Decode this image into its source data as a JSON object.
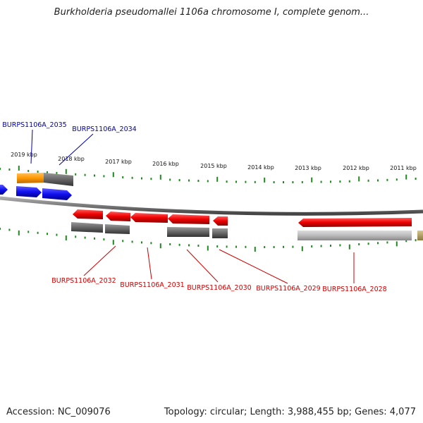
{
  "header": {
    "title": "Burkholderia pseudomallei 1106a chromosome I, complete genom..."
  },
  "footer": {
    "accession": "Accession: NC_009076",
    "summary": "Topology: circular; Length: 3,988,455 bp; Genes: 4,077"
  },
  "scale": {
    "ticks_outer": [
      "2019 kbp",
      "2018 kbp",
      "2017 kbp",
      "2016 kbp",
      "2015 kbp",
      "2014 kbp",
      "2013 kbp",
      "2012 kbp",
      "2011 kbp"
    ]
  },
  "labels": {
    "top": [
      "BURPS1106A_2035",
      "BURPS1106A_2034"
    ],
    "bottom": [
      "BURPS1106A_2032",
      "BURPS1106A_2031",
      "BURPS1106A_2030",
      "BURPS1106A_2029",
      "BURPS1106A_2028"
    ]
  },
  "colors": {
    "forward_gene": "#1010f0",
    "reverse_gene": "#ee0000",
    "cds_feature": "#666666",
    "highlight_feature": "#ff9900",
    "pseudo_feature": "#bbbbbb",
    "tick": "#228822",
    "top_label": "#0000aa",
    "bottom_label": "#cc0000",
    "backbone": "#888888"
  }
}
